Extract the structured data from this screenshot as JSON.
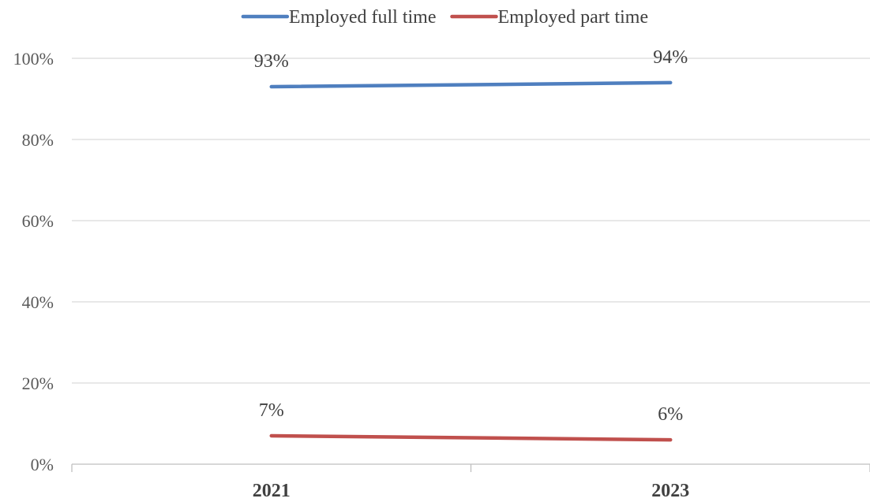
{
  "chart_data": {
    "type": "line",
    "categories": [
      "2021",
      "2023"
    ],
    "series": [
      {
        "name": "Employed full time",
        "values": [
          93,
          94
        ],
        "labels": [
          "93%",
          "94%"
        ],
        "color": "#4f7fbf"
      },
      {
        "name": "Employed part time",
        "values": [
          7,
          6
        ],
        "labels": [
          "7%",
          "6%"
        ],
        "color": "#c0504d"
      }
    ],
    "ylim": [
      0,
      100
    ],
    "yticks": [
      {
        "value": 0,
        "label": "0%"
      },
      {
        "value": 20,
        "label": "20%"
      },
      {
        "value": 40,
        "label": "40%"
      },
      {
        "value": 60,
        "label": "60%"
      },
      {
        "value": 80,
        "label": "80%"
      },
      {
        "value": 100,
        "label": "100%"
      }
    ],
    "grid": true,
    "legend": "top-center",
    "colors": {
      "grid": "#d9d9d9",
      "axis": "#bfbfbf"
    }
  }
}
